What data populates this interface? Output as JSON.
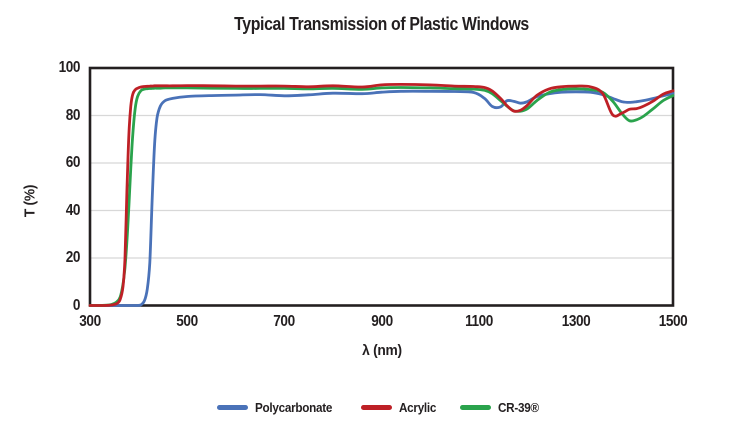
{
  "colors": {
    "text": "#231f20",
    "frame": "#231f20",
    "grid": "#d8d8d8",
    "background": "#ffffff",
    "polycarbonate": "#4a72b8",
    "acrylic": "#be2026",
    "cr39": "#2aa34c"
  },
  "chart_data": {
    "type": "line",
    "title": "Typical Transmission of Plastic Windows",
    "xlabel": "λ (nm)",
    "ylabel": "T (%)",
    "xlim": [
      300,
      1500
    ],
    "ylim": [
      0,
      100
    ],
    "xticks": [
      "300",
      "500",
      "700",
      "900",
      "1100",
      "1300",
      "1500"
    ],
    "yticks": [
      "0",
      "20",
      "40",
      "60",
      "80",
      "100"
    ],
    "grid": "horizontal-only",
    "legend_position": "bottom-center",
    "x": [
      300,
      330,
      345,
      355,
      362,
      368,
      372,
      376,
      380,
      384,
      388,
      393,
      398,
      405,
      412,
      418,
      423,
      428,
      433,
      438,
      445,
      455,
      470,
      500,
      550,
      600,
      650,
      700,
      750,
      800,
      860,
      900,
      940,
      1000,
      1050,
      1090,
      1112,
      1128,
      1145,
      1158,
      1172,
      1186,
      1200,
      1220,
      1245,
      1270,
      1300,
      1330,
      1355,
      1376,
      1395,
      1410,
      1425,
      1440,
      1460,
      1480,
      1500
    ],
    "series": [
      {
        "name": "Polycarbonate",
        "color": "#4a72b8",
        "values": [
          0,
          0,
          0,
          0,
          0,
          0,
          0,
          0,
          0,
          0,
          0,
          0,
          0,
          0.3,
          2,
          7,
          18,
          45,
          68,
          79,
          84,
          86.3,
          87.2,
          88,
          88.4,
          88.6,
          88.8,
          88.3,
          88.7,
          89.4,
          89.2,
          89.8,
          90.2,
          90.2,
          90.1,
          89.7,
          87.2,
          83.8,
          83.6,
          86.2,
          86.0,
          85.2,
          85.8,
          88.0,
          89.2,
          89.8,
          90.0,
          89.8,
          88.8,
          87.2,
          85.8,
          85.5,
          85.8,
          86.3,
          87.2,
          88.3,
          89.3
        ]
      },
      {
        "name": "Acrylic",
        "color": "#be2026",
        "values": [
          0,
          0,
          0.2,
          0.8,
          2.5,
          8,
          20,
          48,
          72,
          84,
          89,
          90.8,
          91.5,
          92,
          92.2,
          92.3,
          92.4,
          92.4,
          92.5,
          92.5,
          92.5,
          92.5,
          92.5,
          92.6,
          92.5,
          92.4,
          92.4,
          92.4,
          92.1,
          92.5,
          92.0,
          92.9,
          93.1,
          92.9,
          92.4,
          92.2,
          91.8,
          90.3,
          87.2,
          84.2,
          81.9,
          82.2,
          84.3,
          88.5,
          91.2,
          92.1,
          92.4,
          92.1,
          89.3,
          80.2,
          81.0,
          82.6,
          82.9,
          84.0,
          86.2,
          89.0,
          90.4
        ]
      },
      {
        "name": "CR-39®",
        "color": "#2aa34c",
        "values": [
          0,
          0.1,
          0.5,
          1.5,
          3.5,
          9,
          16,
          27,
          42,
          58,
          72,
          83,
          88,
          90.5,
          91.1,
          91.3,
          91.4,
          91.4,
          91.5,
          91.5,
          91.5,
          91.6,
          91.6,
          91.6,
          91.5,
          91.4,
          91.4,
          91.4,
          91.2,
          91.4,
          91.0,
          91.6,
          91.8,
          91.6,
          91.3,
          91.1,
          90.6,
          89.2,
          86.3,
          84.0,
          82.0,
          81.8,
          82.8,
          86.3,
          89.7,
          90.9,
          91.2,
          90.9,
          89.8,
          86.0,
          80.8,
          77.8,
          78.2,
          79.8,
          83.0,
          86.3,
          88.4
        ]
      }
    ]
  }
}
